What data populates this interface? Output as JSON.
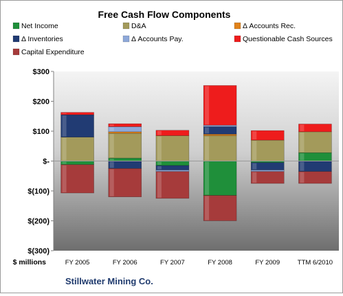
{
  "chart_data": {
    "type": "bar",
    "stacked": true,
    "title": "Free Cash Flow Components",
    "ylabel": "$ millions",
    "source": "Stillwater Mining Co.",
    "categories": [
      "FY 2005",
      "FY 2006",
      "FY 2007",
      "FY 2008",
      "FY 2009",
      "TTM 6/2010"
    ],
    "ylim": [
      -300,
      300
    ],
    "yticks": [
      300,
      200,
      100,
      0,
      -100,
      -200,
      -300
    ],
    "ytick_labels": [
      "$300",
      "$200",
      "$100",
      "$-",
      "$(100)",
      "$(200)",
      "$(300)"
    ],
    "grid": false,
    "legend_position": "top",
    "series": [
      {
        "name": "Net Income",
        "color": "#1f8f3a",
        "values": [
          -12,
          10,
          -15,
          -115,
          -5,
          28
        ]
      },
      {
        "name": "D&A",
        "color": "#a39a5b",
        "values": [
          80,
          83,
          85,
          85,
          70,
          70
        ]
      },
      {
        "name": "Δ Accounts Rec.",
        "color": "#e0821a",
        "values": [
          0,
          5,
          0,
          5,
          0,
          0
        ]
      },
      {
        "name": "Δ Inventories",
        "color": "#213b73",
        "values": [
          75,
          -25,
          -15,
          25,
          -25,
          -35
        ]
      },
      {
        "name": "Δ Accounts Pay.",
        "color": "#8ea8d9",
        "values": [
          0,
          17,
          -5,
          5,
          -5,
          0
        ]
      },
      {
        "name": "Questionable Cash Sources",
        "color": "#ee1c1c",
        "values": [
          8,
          10,
          18,
          133,
          32,
          26
        ]
      },
      {
        "name": "Capital Expenditure",
        "color": "#a63b3b",
        "values": [
          -95,
          -95,
          -90,
          -85,
          -40,
          -40
        ]
      }
    ]
  }
}
